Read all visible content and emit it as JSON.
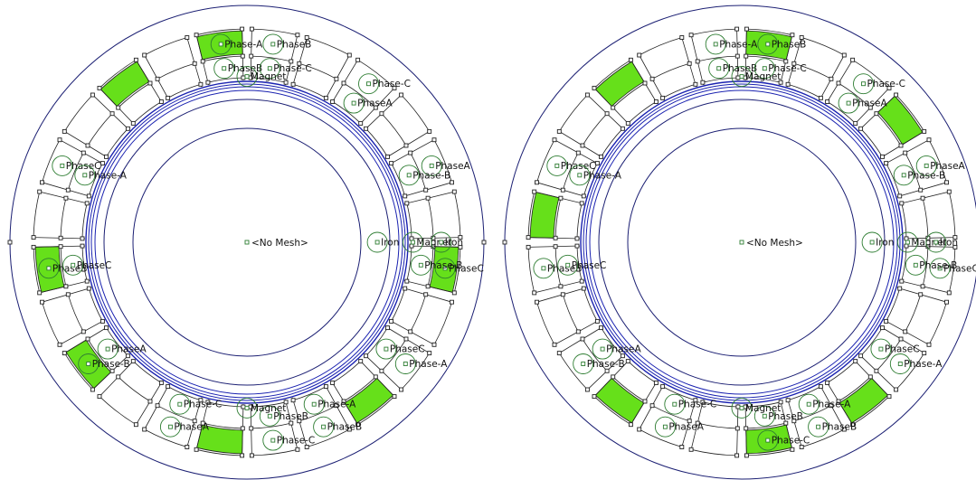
{
  "colors": {
    "outline": "#1b1f73",
    "airgap": "#1a22b0",
    "coil_fill": "#66e01a",
    "label_circle": "#2e7d32",
    "node": "#222222"
  },
  "center_label": "<No Mesh>",
  "panels": [
    {
      "name": "left-motor",
      "energized_slots": [
        0,
        7,
        10,
        13,
        16,
        18,
        22
      ],
      "labels": [
        {
          "text": "Phase-A",
          "slot": 0,
          "layer": "out"
        },
        {
          "text": "PhaseB",
          "slot": 0,
          "layer": "in"
        },
        {
          "text": "PhaseB",
          "slot": 1,
          "layer": "out"
        },
        {
          "text": "Phase-C",
          "slot": 1,
          "layer": "in"
        },
        {
          "text": "Phase-C",
          "slot": 3,
          "layer": "out"
        },
        {
          "text": "PhaseA",
          "slot": 3,
          "layer": "in"
        },
        {
          "text": "PhaseA",
          "slot": 5,
          "layer": "out"
        },
        {
          "text": "Phase-B",
          "slot": 5,
          "layer": "in"
        },
        {
          "text": "PhaseC",
          "slot": 7,
          "layer": "out"
        },
        {
          "text": "Phase-B",
          "slot": 7,
          "layer": "in"
        },
        {
          "text": "Phase-A",
          "slot": 9,
          "layer": "out"
        },
        {
          "text": "PhaseC",
          "slot": 9,
          "layer": "in"
        },
        {
          "text": "PhaseB",
          "slot": 11,
          "layer": "out"
        },
        {
          "text": "Phase-A",
          "slot": 11,
          "layer": "in"
        },
        {
          "text": "Phase-C",
          "slot": 12,
          "layer": "out"
        },
        {
          "text": "PhaseB",
          "slot": 12,
          "layer": "in"
        },
        {
          "text": "PhaseA",
          "slot": 14,
          "layer": "out"
        },
        {
          "text": "Phase-C",
          "slot": 14,
          "layer": "in"
        },
        {
          "text": "Phase-B",
          "slot": 16,
          "layer": "out"
        },
        {
          "text": "PhaseA",
          "slot": 16,
          "layer": "in"
        },
        {
          "text": "PhaseB",
          "slot": 18,
          "layer": "out"
        },
        {
          "text": "PhaseC",
          "slot": 18,
          "layer": "in"
        },
        {
          "text": "PhaseC",
          "slot": 20,
          "layer": "out"
        },
        {
          "text": "Phase-A",
          "slot": 20,
          "layer": "in"
        }
      ],
      "region_labels": [
        {
          "text": "Magnet",
          "deg": 90,
          "r": 0.7
        },
        {
          "text": "Magnet",
          "deg": 0,
          "r": 0.7
        },
        {
          "text": "Magnet",
          "deg": 270,
          "r": 0.7
        },
        {
          "text": "Iron",
          "deg": 0,
          "r": 0.55
        },
        {
          "text": "Iron",
          "deg": 0,
          "r": 0.82
        }
      ]
    },
    {
      "name": "right-motor",
      "energized_slots": [
        1,
        4,
        10,
        12,
        15,
        19,
        22
      ],
      "labels": [
        {
          "text": "Phase-A",
          "slot": 0,
          "layer": "out"
        },
        {
          "text": "PhaseB",
          "slot": 0,
          "layer": "in"
        },
        {
          "text": "PhaseB",
          "slot": 1,
          "layer": "out"
        },
        {
          "text": "Phase-C",
          "slot": 1,
          "layer": "in"
        },
        {
          "text": "Phase-C",
          "slot": 3,
          "layer": "out"
        },
        {
          "text": "PhaseA",
          "slot": 3,
          "layer": "in"
        },
        {
          "text": "PhaseA",
          "slot": 5,
          "layer": "out"
        },
        {
          "text": "Phase-B",
          "slot": 5,
          "layer": "in"
        },
        {
          "text": "PhaseC",
          "slot": 7,
          "layer": "out"
        },
        {
          "text": "Phase-B",
          "slot": 7,
          "layer": "in"
        },
        {
          "text": "Phase-A",
          "slot": 9,
          "layer": "out"
        },
        {
          "text": "PhaseC",
          "slot": 9,
          "layer": "in"
        },
        {
          "text": "PhaseB",
          "slot": 11,
          "layer": "out"
        },
        {
          "text": "Phase-A",
          "slot": 11,
          "layer": "in"
        },
        {
          "text": "Phase-C",
          "slot": 12,
          "layer": "out"
        },
        {
          "text": "PhaseB",
          "slot": 12,
          "layer": "in"
        },
        {
          "text": "PhaseA",
          "slot": 14,
          "layer": "out"
        },
        {
          "text": "Phase-C",
          "slot": 14,
          "layer": "in"
        },
        {
          "text": "Phase-B",
          "slot": 16,
          "layer": "out"
        },
        {
          "text": "PhaseA",
          "slot": 16,
          "layer": "in"
        },
        {
          "text": "PhaseB",
          "slot": 18,
          "layer": "out"
        },
        {
          "text": "PhaseC",
          "slot": 18,
          "layer": "in"
        },
        {
          "text": "PhaseC",
          "slot": 20,
          "layer": "out"
        },
        {
          "text": "Phase-A",
          "slot": 20,
          "layer": "in"
        }
      ],
      "region_labels": [
        {
          "text": "Magnet",
          "deg": 90,
          "r": 0.7
        },
        {
          "text": "Magnet",
          "deg": 0,
          "r": 0.7
        },
        {
          "text": "Magnet",
          "deg": 270,
          "r": 0.7
        },
        {
          "text": "Iron",
          "deg": 0,
          "r": 0.55
        },
        {
          "text": "Iron",
          "deg": 0,
          "r": 0.82
        }
      ]
    }
  ]
}
